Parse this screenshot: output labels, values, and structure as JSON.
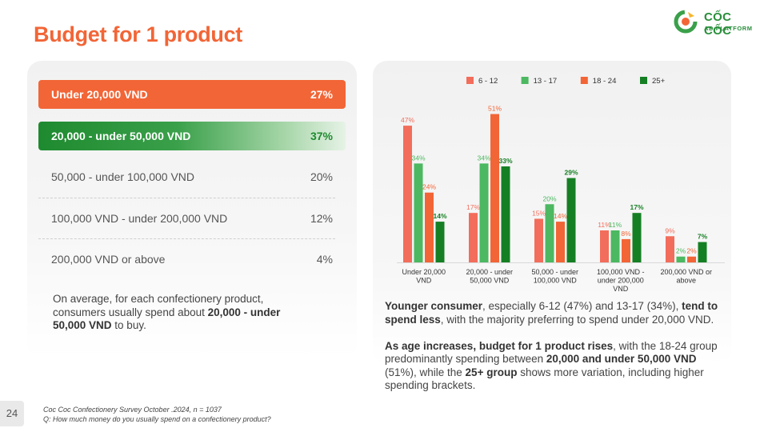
{
  "title": "Budget for 1 product",
  "logo": {
    "name": "CỐC CỐC",
    "sub": "AD PLATFORM"
  },
  "options": [
    {
      "label": "Under 20,000 VND",
      "value": "27%"
    },
    {
      "label": "20,000 - under 50,000 VND",
      "value": "37%"
    },
    {
      "label": "50,000 - under 100,000 VND",
      "value": "20%"
    },
    {
      "label": "100,000 VND - under 200,000 VND",
      "value": "12%"
    },
    {
      "label": "200,000 VND or above",
      "value": "4%"
    }
  ],
  "summary": {
    "prefix": "On average, for each confectionery product, consumers usually spend about ",
    "bold": "20,000 - under 50,000 VND",
    "suffix": " to buy."
  },
  "insights": {
    "p1": [
      {
        "t": "Younger consumer",
        "b": true
      },
      {
        "t": ", especially 6-12 (47%) and 13-17 (34%), ",
        "b": false
      },
      {
        "t": "tend to spend less",
        "b": true
      },
      {
        "t": ", with the majority preferring to spend under 20,000 VND.",
        "b": false
      }
    ],
    "p2": [
      {
        "t": "As age increases, budget for 1 product rises",
        "b": true
      },
      {
        "t": ", with the 18-24 group predominantly spending between ",
        "b": false
      },
      {
        "t": "20,000 and under 50,000 VND",
        "b": true
      },
      {
        "t": " (51%), while the ",
        "b": false
      },
      {
        "t": "25+ group",
        "b": true
      },
      {
        "t": " shows more variation, including higher spending brackets.",
        "b": false
      }
    ]
  },
  "page_number": "24",
  "source": {
    "line1": "Coc Coc Confectionery Survey October .2024, n = 1037",
    "line2": "Q: How much money do you usually spend on a confectionery product?"
  },
  "chart_data": {
    "type": "bar",
    "categories": [
      [
        "Under 20,000",
        "VND"
      ],
      [
        "20,000 - under",
        "50,000 VND"
      ],
      [
        "50,000 - under",
        "100,000 VND"
      ],
      [
        "100,000 VND -",
        "under 200,000",
        "VND"
      ],
      [
        "200,000 VND or",
        "above"
      ]
    ],
    "series": [
      {
        "name": "6 - 12",
        "color": "#f26d5b",
        "label_color": "#f26d5b",
        "values": [
          47,
          17,
          15,
          11,
          9
        ]
      },
      {
        "name": "13 - 17",
        "color": "#4cb861",
        "label_color": "#4cb861",
        "values": [
          34,
          34,
          20,
          11,
          2
        ]
      },
      {
        "name": "18 - 24",
        "color": "#f26536",
        "label_color": "#f26536",
        "values": [
          24,
          51,
          14,
          8,
          2
        ]
      },
      {
        "name": "25+",
        "color": "#157f24",
        "label_color": "#157f24",
        "values": [
          14,
          33,
          29,
          17,
          7
        ]
      }
    ],
    "value_suffix": "%",
    "legend": "top",
    "ylim": [
      0,
      55
    ],
    "grid": false
  }
}
